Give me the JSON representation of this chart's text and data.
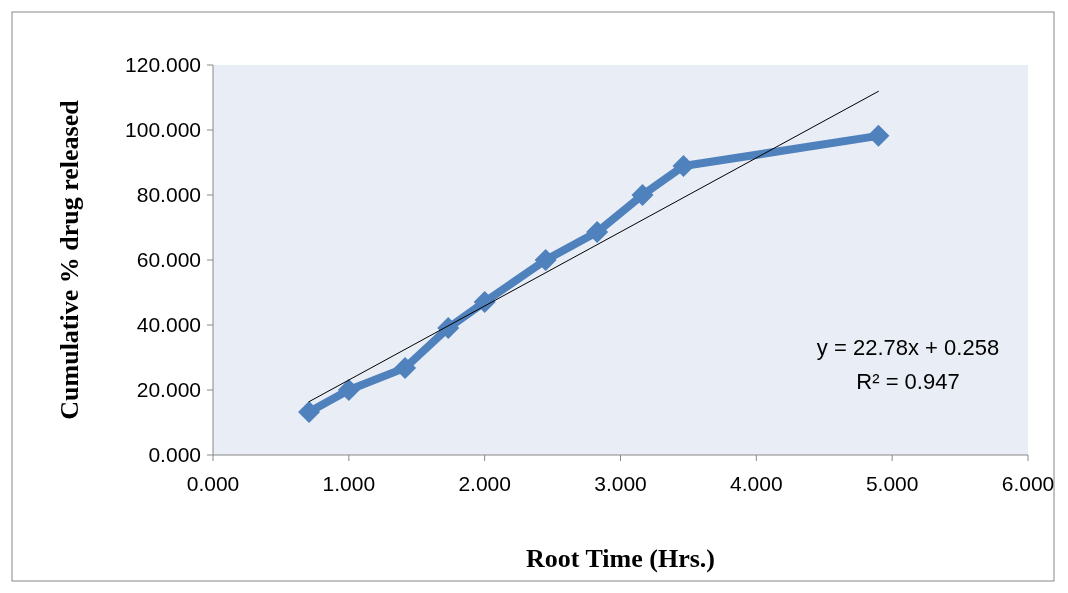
{
  "chart_data": {
    "type": "line",
    "xlabel": "Root Time (Hrs.)",
    "ylabel": "Cumulative % drug released",
    "series": [
      {
        "color": "#4f81bd",
        "marker": "diamond",
        "x": [
          0.707,
          1.0,
          1.414,
          1.732,
          2.0,
          2.449,
          2.828,
          3.162,
          3.464,
          4.899
        ],
        "values": [
          13.2,
          20.0,
          26.8,
          39.1,
          47.1,
          60.0,
          68.6,
          80.0,
          88.9,
          98.2
        ]
      },
      {
        "color": "#000000",
        "marker": "none",
        "x": [
          0.707,
          4.899
        ],
        "values": [
          16.4,
          111.9
        ]
      }
    ],
    "xlim": [
      0,
      6
    ],
    "ylim": [
      0,
      120
    ],
    "xticks": [
      {
        "value": 0,
        "label": "0.000"
      },
      {
        "value": 1,
        "label": "1.000"
      },
      {
        "value": 2,
        "label": "2.000"
      },
      {
        "value": 3,
        "label": "3.000"
      },
      {
        "value": 4,
        "label": "4.000"
      },
      {
        "value": 5,
        "label": "5.000"
      },
      {
        "value": 6,
        "label": "6.000"
      }
    ],
    "yticks": [
      {
        "value": 0,
        "label": "0.000"
      },
      {
        "value": 20,
        "label": "20.000"
      },
      {
        "value": 40,
        "label": "40.000"
      },
      {
        "value": 60,
        "label": "60.000"
      },
      {
        "value": 80,
        "label": "80.000"
      },
      {
        "value": 100,
        "label": "100.000"
      },
      {
        "value": 120,
        "label": "120.000"
      }
    ],
    "grid": false,
    "annotations": [
      "y = 22.78x + 0.258",
      "R² = 0.947"
    ]
  }
}
